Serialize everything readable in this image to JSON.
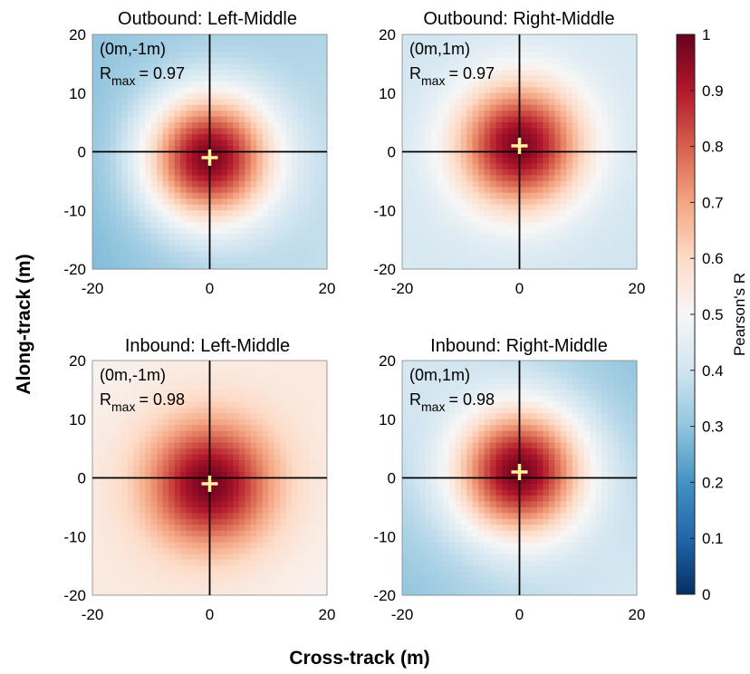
{
  "figure": {
    "xlabel": "Cross-track (m)",
    "ylabel": "Along-track (m)",
    "colorbar": {
      "label": "Pearson's R",
      "min": 0,
      "max": 1,
      "ticks": [
        "0",
        "0.1",
        "0.2",
        "0.3",
        "0.4",
        "0.5",
        "0.6",
        "0.7",
        "0.8",
        "0.9",
        "1"
      ],
      "colormap": [
        "#053061",
        "#2166ac",
        "#4393c3",
        "#92c5de",
        "#d1e5f0",
        "#f7f7f7",
        "#fddbc7",
        "#f4a582",
        "#d6604d",
        "#b2182b",
        "#67001f"
      ]
    }
  },
  "chart_data": [
    {
      "type": "heatmap",
      "title": "Outbound: Left-Middle",
      "offset_label": "(0m,-1m)",
      "rmax_label": "R",
      "rmax_sub": "max",
      "rmax_value": "= 0.97",
      "peak": {
        "x": 0,
        "y": -1,
        "r": 0.97
      },
      "corner_r": [
        0.3,
        0.35,
        0.28,
        0.38
      ],
      "xlim": [
        -20,
        20
      ],
      "ylim": [
        -20,
        20
      ],
      "xticks": [
        "-20",
        "0",
        "20"
      ],
      "yticks": [
        "20",
        "10",
        "0",
        "-10",
        "-20"
      ],
      "marker_color": "#fff3a0"
    },
    {
      "type": "heatmap",
      "title": "Outbound: Right-Middle",
      "offset_label": "(0m,1m)",
      "rmax_label": "R",
      "rmax_sub": "max",
      "rmax_value": "= 0.97",
      "peak": {
        "x": 0,
        "y": 1,
        "r": 0.97
      },
      "corner_r": [
        0.4,
        0.42,
        0.42,
        0.4
      ],
      "xlim": [
        -20,
        20
      ],
      "ylim": [
        -20,
        20
      ],
      "xticks": [
        "-20",
        "0",
        "20"
      ],
      "yticks": [
        "20",
        "10",
        "0",
        "-10",
        "-20"
      ],
      "marker_color": "#fff3a0"
    },
    {
      "type": "heatmap",
      "title": "Inbound: Left-Middle",
      "offset_label": "(0m,-1m)",
      "rmax_label": "R",
      "rmax_sub": "max",
      "rmax_value": "= 0.98",
      "peak": {
        "x": 0,
        "y": -1,
        "r": 0.98
      },
      "corner_r": [
        0.52,
        0.55,
        0.55,
        0.52
      ],
      "xlim": [
        -20,
        20
      ],
      "ylim": [
        -20,
        20
      ],
      "xticks": [
        "-20",
        "0",
        "20"
      ],
      "yticks": [
        "20",
        "10",
        "0",
        "-10",
        "-20"
      ],
      "marker_color": "#fff3a0"
    },
    {
      "type": "heatmap",
      "title": "Inbound: Right-Middle",
      "offset_label": "(0m,1m)",
      "rmax_label": "R",
      "rmax_sub": "max",
      "rmax_value": "= 0.98",
      "peak": {
        "x": 0,
        "y": 1,
        "r": 0.98
      },
      "corner_r": [
        0.42,
        0.3,
        0.3,
        0.42
      ],
      "xlim": [
        -20,
        20
      ],
      "ylim": [
        -20,
        20
      ],
      "xticks": [
        "-20",
        "0",
        "20"
      ],
      "yticks": [
        "20",
        "10",
        "0",
        "-10",
        "-20"
      ],
      "marker_color": "#fff3a0"
    }
  ]
}
